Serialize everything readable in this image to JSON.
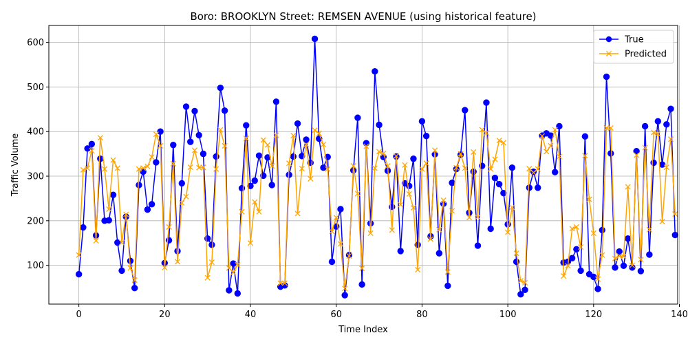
{
  "chart_data": {
    "type": "line",
    "title": "Boro: BROOKLYN Street: REMSEN AVENUE (using historical feature)",
    "xlabel": "Time Index",
    "ylabel": "Traffic Volume",
    "xlim": [
      -7,
      139.6
    ],
    "ylim": [
      13,
      638
    ],
    "xticks": [
      0,
      20,
      40,
      60,
      80,
      100,
      120,
      140
    ],
    "yticks": [
      100,
      200,
      300,
      400,
      500,
      600
    ],
    "grid": true,
    "legend_position": "top-right",
    "series": [
      {
        "name": "True",
        "color": "#0000ff",
        "marker": "circle",
        "values": [
          80,
          185,
          362,
          372,
          167,
          339,
          200,
          201,
          258,
          151,
          88,
          209,
          110,
          49,
          280,
          310,
          225,
          237,
          331,
          400,
          105,
          156,
          370,
          132,
          284,
          456,
          377,
          446,
          392,
          350,
          160,
          146,
          344,
          498,
          447,
          44,
          104,
          37,
          273,
          414,
          278,
          290,
          346,
          301,
          342,
          280,
          467,
          52,
          55,
          303,
          344,
          418,
          345,
          382,
          330,
          608,
          384,
          319,
          343,
          108,
          187,
          226,
          33,
          123,
          313,
          431,
          57,
          374,
          194,
          535,
          415,
          343,
          312,
          231,
          344,
          132,
          284,
          278,
          339,
          146,
          423,
          390,
          165,
          349,
          127,
          238,
          54,
          285,
          316,
          348,
          448,
          218,
          310,
          144,
          323,
          465,
          182,
          296,
          282,
          262,
          192,
          319,
          108,
          35,
          45,
          274,
          310,
          274,
          391,
          396,
          391,
          309,
          412,
          106,
          108,
          116,
          136,
          88,
          389,
          80,
          74,
          47,
          179,
          523,
          351,
          95,
          131,
          99,
          160,
          95,
          356,
          87,
          412,
          124,
          330,
          423,
          326,
          416,
          451,
          168
        ]
      },
      {
        "name": "Predicted",
        "color": "#ffa500",
        "marker": "x",
        "values": [
          123,
          314,
          318,
          357,
          155,
          386,
          316,
          226,
          336,
          318,
          151,
          214,
          94,
          67,
          316,
          318,
          322,
          343,
          394,
          368,
          95,
          186,
          328,
          108,
          240,
          254,
          320,
          358,
          319,
          320,
          72,
          107,
          316,
          404,
          368,
          94,
          84,
          101,
          220,
          385,
          150,
          242,
          220,
          381,
          370,
          323,
          392,
          60,
          60,
          329,
          391,
          216,
          317,
          371,
          294,
          403,
          396,
          371,
          316,
          176,
          207,
          148,
          48,
          121,
          323,
          261,
          93,
          367,
          172,
          318,
          355,
          351,
          323,
          179,
          345,
          236,
          325,
          260,
          229,
          90,
          316,
          329,
          159,
          358,
          180,
          246,
          85,
          222,
          319,
          350,
          318,
          207,
          354,
          208,
          404,
          397,
          316,
          338,
          380,
          375,
          174,
          230,
          127,
          65,
          61,
          317,
          308,
          316,
          390,
          355,
          368,
          404,
          344,
          76,
          99,
          182,
          186,
          141,
          346,
          248,
          172,
          69,
          123,
          408,
          408,
          115,
          121,
          120,
          276,
          100,
          347,
          113,
          364,
          180,
          398,
          395,
          198,
          320,
          383,
          215
        ]
      }
    ]
  }
}
